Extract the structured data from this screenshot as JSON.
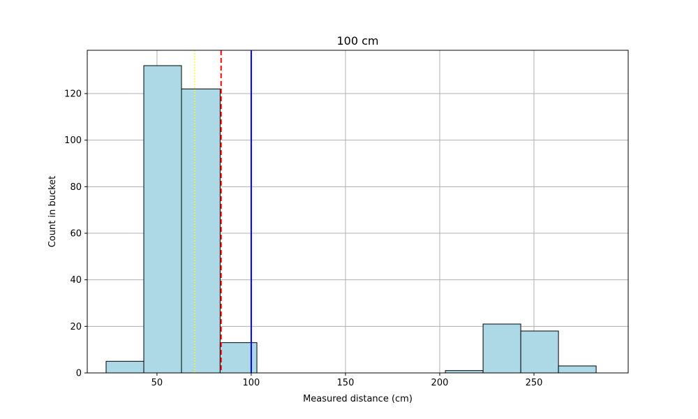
{
  "chart_data": {
    "type": "bar",
    "title": "100 cm",
    "xlabel": "Measured distance (cm)",
    "ylabel": "Count in bucket",
    "xlim": [
      13,
      300
    ],
    "ylim": [
      0,
      138.6
    ],
    "grid": true,
    "xticks": [
      50,
      100,
      150,
      200,
      250
    ],
    "xtick_labels": [
      "50",
      "100",
      "150",
      "200",
      "250"
    ],
    "yticks": [
      0,
      20,
      40,
      60,
      80,
      100,
      120
    ],
    "ytick_labels": [
      "0",
      "20",
      "40",
      "60",
      "80",
      "100",
      "120"
    ],
    "bar_color": "#add8e6",
    "bar_edge_color": "#000000",
    "bins": [
      {
        "start": 23,
        "end": 43,
        "count": 5
      },
      {
        "start": 43,
        "end": 63,
        "count": 132
      },
      {
        "start": 63,
        "end": 83.5,
        "count": 122
      },
      {
        "start": 83.5,
        "end": 103,
        "count": 13
      },
      {
        "start": 103,
        "end": 123,
        "count": 0
      },
      {
        "start": 123,
        "end": 143,
        "count": 0
      },
      {
        "start": 143,
        "end": 163,
        "count": 0
      },
      {
        "start": 163,
        "end": 183,
        "count": 0
      },
      {
        "start": 183,
        "end": 203,
        "count": 0
      },
      {
        "start": 203,
        "end": 223,
        "count": 1
      },
      {
        "start": 223,
        "end": 243,
        "count": 21
      },
      {
        "start": 243,
        "end": 263,
        "count": 18
      },
      {
        "start": 263,
        "end": 283,
        "count": 3
      }
    ],
    "reference_lines": [
      {
        "x": 70,
        "color": "#ffff00",
        "style": "dotted"
      },
      {
        "x": 84,
        "color": "#ff0000",
        "style": "dashed"
      },
      {
        "x": 100,
        "color": "#0000ff",
        "style": "solid"
      }
    ]
  }
}
